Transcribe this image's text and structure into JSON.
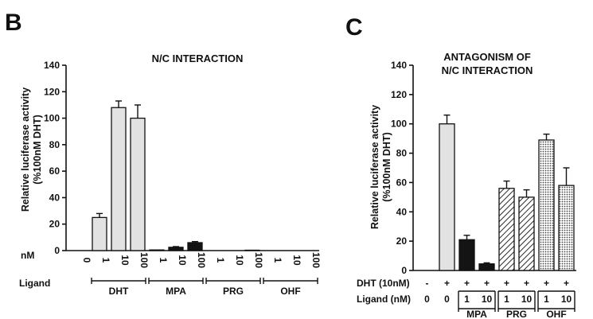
{
  "chart_data": [
    {
      "panel": "B",
      "type": "bar",
      "title": "N/C INTERACTION",
      "ylabel": [
        "Relative luciferase activity",
        "(%100nM DHT)"
      ],
      "ylim": [
        0,
        140
      ],
      "yticks": [
        0,
        20,
        40,
        60,
        80,
        100,
        120,
        140
      ],
      "row_label_nM": "nM",
      "row_label_ligand": "Ligand",
      "categories": [
        "0",
        "1",
        "10",
        "100",
        "1",
        "10",
        "100",
        "1",
        "10",
        "100",
        "1",
        "10",
        "100"
      ],
      "values": [
        0,
        25,
        108,
        100,
        0.5,
        2.5,
        6,
        0,
        0,
        0.3,
        0,
        0,
        0
      ],
      "errors": [
        0,
        3,
        5,
        10,
        0,
        0.5,
        0.8,
        0,
        0,
        0,
        0,
        0,
        0
      ],
      "fills": [
        "none",
        "light",
        "light",
        "light",
        "dark",
        "dark",
        "dark",
        "dark",
        "dark",
        "dark",
        "dark",
        "dark",
        "dark"
      ],
      "groups": [
        {
          "label": "DHT",
          "from": 1,
          "to": 3
        },
        {
          "label": "MPA",
          "from": 4,
          "to": 6
        },
        {
          "label": "PRG",
          "from": 7,
          "to": 9
        },
        {
          "label": "OHF",
          "from": 10,
          "to": 12
        }
      ]
    },
    {
      "panel": "C",
      "type": "bar",
      "title": [
        "ANTAGONISM OF",
        "N/C INTERACTION"
      ],
      "ylabel": [
        "Relative luciferase activity",
        "(%100nM DHT)"
      ],
      "ylim": [
        0,
        140
      ],
      "yticks": [
        0,
        20,
        40,
        60,
        80,
        100,
        120,
        140
      ],
      "row_label_dht": "DHT (10nM)",
      "row_label_ligand": "Ligand (nM)",
      "dht_row": [
        "-",
        "+",
        "+",
        "+",
        "+",
        "+",
        "+",
        "+"
      ],
      "ligand_row": [
        "0",
        "0",
        "1",
        "10",
        "1",
        "10",
        "1",
        "10"
      ],
      "values": [
        0,
        100,
        21,
        4.5,
        56,
        50,
        89,
        58
      ],
      "errors": [
        0,
        6,
        3,
        0.7,
        5,
        5,
        4,
        12
      ],
      "fills": [
        "none",
        "light",
        "dark",
        "dark",
        "hatch",
        "hatch",
        "dot",
        "dot"
      ],
      "groups": [
        {
          "label": "MPA",
          "from": 2,
          "to": 3
        },
        {
          "label": "PRG",
          "from": 4,
          "to": 5
        },
        {
          "label": "OHF",
          "from": 6,
          "to": 7
        }
      ]
    }
  ],
  "colors": {
    "light": "#e2e2e2",
    "dark": "#141414",
    "ink": "#111111"
  }
}
